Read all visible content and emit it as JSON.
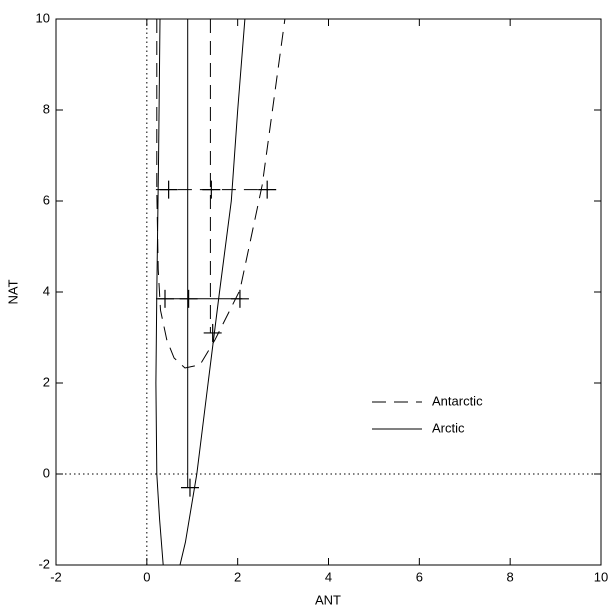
{
  "chart_data": {
    "type": "line",
    "x_label": "ANT",
    "y_label": "NAT",
    "xlim": [
      -2,
      10
    ],
    "ylim": [
      -2,
      10
    ],
    "xticks": [
      -2,
      0,
      2,
      4,
      6,
      8,
      10
    ],
    "yticks": [
      -2,
      0,
      2,
      4,
      6,
      8,
      10
    ],
    "zero_lines": true,
    "legend": "right",
    "series": [
      {
        "name": "Antarctic",
        "color": "#000000",
        "dash": true,
        "x": [
          0.22,
          0.22,
          0.25,
          0.3,
          0.44,
          0.6,
          0.84,
          1.17,
          1.5,
          2.05,
          2.54,
          3.04,
          null,
          1.4,
          1.4,
          null,
          0.2,
          2.7
        ],
        "y": [
          10,
          6.25,
          4.5,
          3.6,
          2.95,
          2.55,
          2.33,
          2.4,
          2.95,
          4.04,
          6.35,
          10,
          null,
          10,
          3.1,
          null,
          6.25,
          6.25
        ],
        "points_x": [
          0.48,
          1.42,
          2.65,
          1.45
        ],
        "points_y": [
          6.25,
          6.25,
          6.25,
          3.1
        ]
      },
      {
        "name": "Arctic",
        "color": "#000000",
        "dash": false,
        "x": [
          0.29,
          0.26,
          0.22,
          0.2,
          0.22,
          0.28,
          0.36,
          null,
          2.16,
          2.0,
          1.86,
          1.6,
          1.35,
          1.1,
          0.85,
          0.73,
          null,
          0.9,
          0.9,
          null,
          0.25,
          2.1
        ],
        "y": [
          10,
          7,
          4,
          2,
          0,
          -1,
          -2,
          null,
          10,
          8,
          6,
          4,
          2,
          0,
          -1.5,
          -2,
          null,
          10,
          -0.3,
          null,
          3.85,
          3.85
        ],
        "points_x": [
          0.4,
          0.92,
          2.05,
          0.95
        ],
        "points_y": [
          3.85,
          3.85,
          3.85,
          -0.3
        ]
      }
    ]
  }
}
